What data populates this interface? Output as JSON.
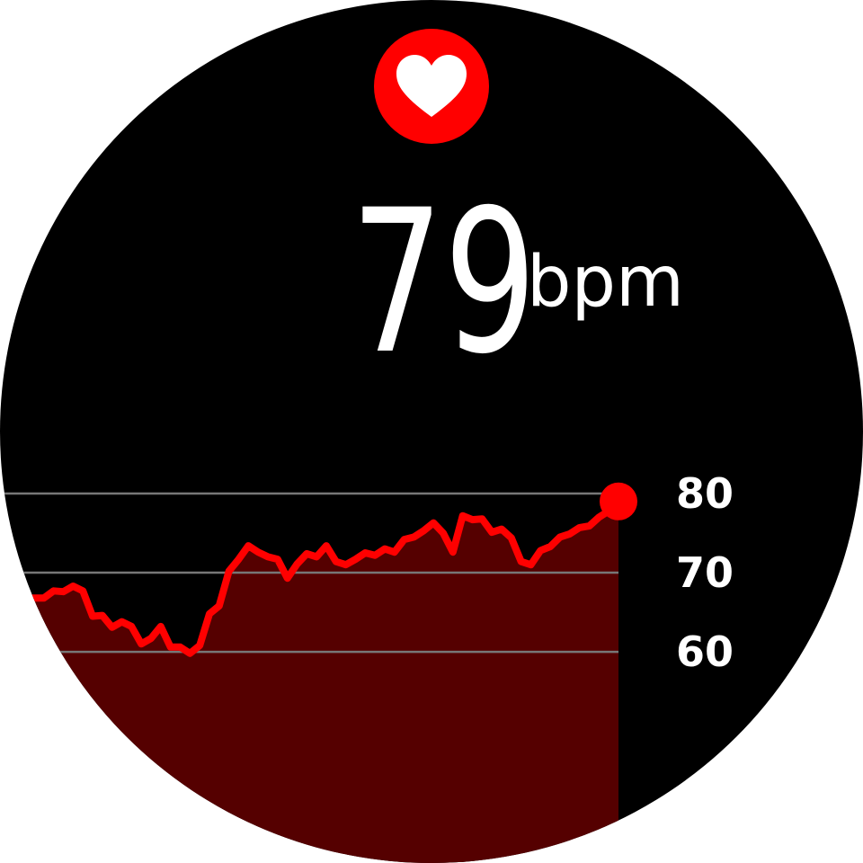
{
  "reading": {
    "value": "79",
    "unit": "bpm"
  },
  "chart_data": {
    "type": "area",
    "values": [
      66.8,
      66.8,
      67.7,
      67.6,
      68.3,
      67.7,
      64.5,
      64.6,
      63.1,
      63.8,
      63.2,
      61.0,
      61.7,
      63.2,
      60.6,
      60.6,
      59.8,
      60.8,
      64.8,
      65.8,
      70.2,
      71.7,
      73.4,
      72.6,
      72.0,
      71.7,
      69.3,
      71.1,
      72.4,
      72.0,
      73.4,
      71.4,
      71.0,
      71.7,
      72.5,
      72.2,
      73.0,
      72.6,
      74.2,
      74.5,
      75.3,
      76.3,
      75.0,
      72.6,
      77.2,
      76.7,
      76.8,
      75.1,
      75.5,
      74.4,
      71.4,
      71.0,
      72.8,
      73.3,
      74.5,
      74.9,
      75.7,
      75.9,
      77.0,
      77.8,
      79
    ],
    "color": "#ff0000",
    "fill": "#550000",
    "ylim": [
      34,
      80
    ],
    "yticks": [
      60,
      70,
      80
    ],
    "grid": true
  }
}
